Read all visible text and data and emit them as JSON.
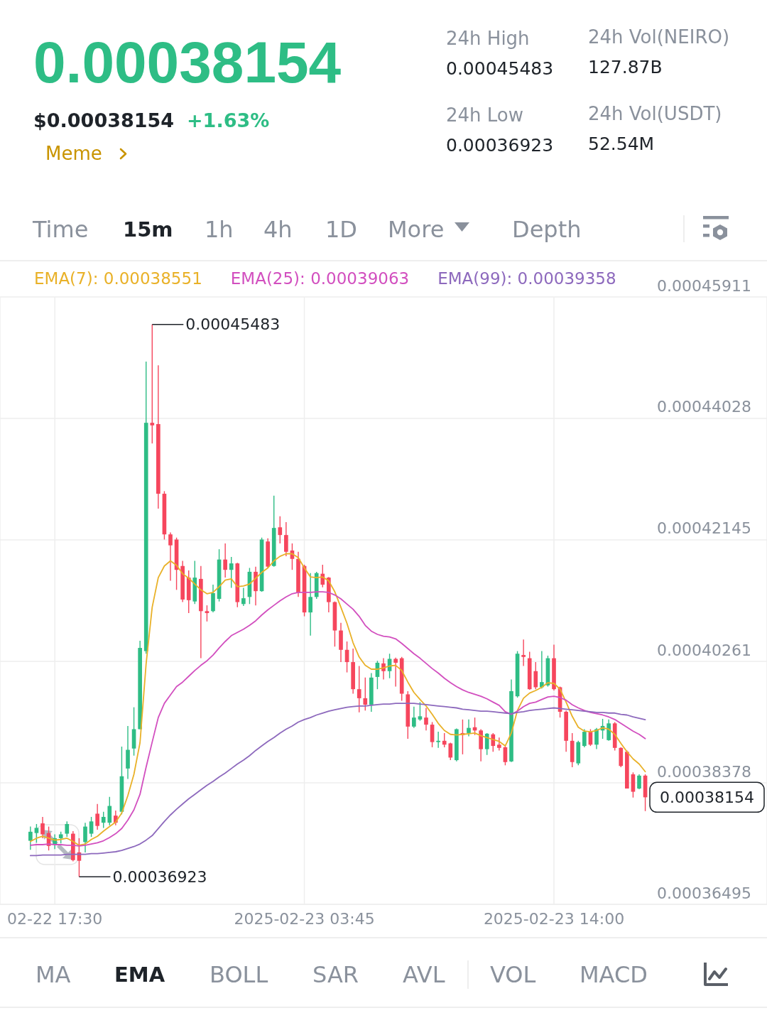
{
  "chart_data": {
    "type": "candlestick",
    "title": "0.00038154",
    "subtitle": "$0.00038154",
    "annotations": [
      "+1.63%",
      "Meme",
      "24h High",
      "0.00045483",
      "24h Low",
      "0.00036923",
      "24h Vol(NEIRO)",
      "127.87B",
      "24h Vol(USDT)",
      "52.54M",
      "Time",
      "15m",
      "1h",
      "4h",
      "1D",
      "More",
      "Depth",
      "MA",
      "EMA",
      "BOLL",
      "SAR",
      "AVL",
      "VOL",
      "MACD",
      {
        "text": "0.00045483",
        "x": "2025-02-22T21:30",
        "y": 0.00045483
      },
      {
        "text": "0.00036923",
        "x": "2025-02-22T18:30",
        "y": 0.00036923
      },
      "0.00038154"
    ],
    "x": [
      "2025-02-22T16:30",
      "2025-02-22T16:45",
      "2025-02-22T17:00",
      "2025-02-22T17:15",
      "2025-02-22T17:30",
      "2025-02-22T17:45",
      "2025-02-22T18:00",
      "2025-02-22T18:15",
      "2025-02-22T18:30",
      "2025-02-22T18:45",
      "2025-02-22T19:00",
      "2025-02-22T19:15",
      "2025-02-22T19:30",
      "2025-02-22T19:45",
      "2025-02-22T20:00",
      "2025-02-22T20:15",
      "2025-02-22T20:30",
      "2025-02-22T20:45",
      "2025-02-22T21:00",
      "2025-02-22T21:15",
      "2025-02-22T21:30",
      "2025-02-22T21:45",
      "2025-02-22T22:00",
      "2025-02-22T22:15",
      "2025-02-22T22:30",
      "2025-02-22T22:45",
      "2025-02-22T23:00",
      "2025-02-22T23:15",
      "2025-02-22T23:30",
      "2025-02-22T23:45",
      "2025-02-23T00:00",
      "2025-02-23T00:15",
      "2025-02-23T00:30",
      "2025-02-23T00:45",
      "2025-02-23T01:00",
      "2025-02-23T01:15",
      "2025-02-23T01:30",
      "2025-02-23T01:45",
      "2025-02-23T02:00",
      "2025-02-23T02:15",
      "2025-02-23T02:30",
      "2025-02-23T02:45",
      "2025-02-23T03:00",
      "2025-02-23T03:15",
      "2025-02-23T03:30",
      "2025-02-23T03:45",
      "2025-02-23T04:00",
      "2025-02-23T04:15",
      "2025-02-23T04:30",
      "2025-02-23T04:45",
      "2025-02-23T05:00",
      "2025-02-23T05:15",
      "2025-02-23T05:30",
      "2025-02-23T05:45",
      "2025-02-23T06:00",
      "2025-02-23T06:15",
      "2025-02-23T06:30",
      "2025-02-23T06:45",
      "2025-02-23T07:00",
      "2025-02-23T07:15",
      "2025-02-23T07:30",
      "2025-02-23T07:45",
      "2025-02-23T08:00",
      "2025-02-23T08:15",
      "2025-02-23T08:30",
      "2025-02-23T08:45",
      "2025-02-23T09:00",
      "2025-02-23T09:15",
      "2025-02-23T09:30",
      "2025-02-23T09:45",
      "2025-02-23T10:00",
      "2025-02-23T10:15",
      "2025-02-23T10:30",
      "2025-02-23T10:45",
      "2025-02-23T11:00",
      "2025-02-23T11:15",
      "2025-02-23T11:30",
      "2025-02-23T11:45",
      "2025-02-23T12:00",
      "2025-02-23T12:15",
      "2025-02-23T12:30",
      "2025-02-23T12:45",
      "2025-02-23T13:00",
      "2025-02-23T13:15",
      "2025-02-23T13:30",
      "2025-02-23T13:45",
      "2025-02-23T14:00",
      "2025-02-23T14:15",
      "2025-02-23T14:30",
      "2025-02-23T14:45",
      "2025-02-23T15:00",
      "2025-02-23T15:15",
      "2025-02-23T15:30",
      "2025-02-23T15:45",
      "2025-02-23T16:00",
      "2025-02-23T16:15",
      "2025-02-23T16:30",
      "2025-02-23T16:45",
      "2025-02-23T17:00",
      "2025-02-23T17:15",
      "2025-02-23T17:30",
      "2025-02-23T17:45"
    ],
    "ohlc": [
      [
        0.0003748,
        0.000377,
        0.0003734,
        0.0003762
      ],
      [
        0.000376,
        0.0003774,
        0.0003745,
        0.0003768
      ],
      [
        0.0003775,
        0.0003785,
        0.0003752,
        0.0003758
      ],
      [
        0.000376,
        0.000377,
        0.0003733,
        0.000374
      ],
      [
        0.0003742,
        0.0003758,
        0.0003735,
        0.0003752
      ],
      [
        0.0003752,
        0.0003762,
        0.0003744,
        0.0003758
      ],
      [
        0.0003759,
        0.0003778,
        0.0003754,
        0.0003774
      ],
      [
        0.0003759,
        0.0003763,
        0.0003716,
        0.0003718
      ],
      [
        0.000373,
        0.0003752,
        0.00036923,
        0.0003717
      ],
      [
        0.0003746,
        0.0003776,
        0.000373,
        0.000377
      ],
      [
        0.0003759,
        0.0003785,
        0.0003754,
        0.0003778
      ],
      [
        0.000379,
        0.0003805,
        0.0003765,
        0.0003771
      ],
      [
        0.0003776,
        0.0003793,
        0.0003768,
        0.0003785
      ],
      [
        0.0003776,
        0.0003816,
        0.0003772,
        0.0003802
      ],
      [
        0.0003787,
        0.0003795,
        0.0003772,
        0.0003776
      ],
      [
        0.0003793,
        0.0003894,
        0.0003789,
        0.0003848
      ],
      [
        0.000386,
        0.0003926,
        0.0003844,
        0.0003889
      ],
      [
        0.0003891,
        0.0003955,
        0.000388,
        0.0003921
      ],
      [
        0.0003921,
        0.0004058,
        0.0003921,
        0.0004047
      ],
      [
        0.0004042,
        0.0004491,
        0.0004038,
        0.0004396
      ],
      [
        0.0004396,
        0.00045483,
        0.0004364,
        0.0004392
      ],
      [
        0.0004394,
        0.0004485,
        0.0004263,
        0.0004286
      ],
      [
        0.0004286,
        0.000429,
        0.0004215,
        0.0004223
      ],
      [
        0.0004223,
        0.0004226,
        0.0004151,
        0.0004206
      ],
      [
        0.0004215,
        0.0004218,
        0.0004137,
        0.0004168
      ],
      [
        0.0004174,
        0.0004182,
        0.0004118,
        0.0004122
      ],
      [
        0.0004156,
        0.0004167,
        0.0004101,
        0.0004121
      ],
      [
        0.0004119,
        0.0004182,
        0.0004115,
        0.0004156
      ],
      [
        0.0004154,
        0.0004174,
        0.0004031,
        0.0004104
      ],
      [
        0.0004104,
        0.0004113,
        0.0004088,
        0.0004101
      ],
      [
        0.0004104,
        0.0004145,
        0.0004102,
        0.0004132
      ],
      [
        0.0004123,
        0.00042,
        0.0004119,
        0.0004184
      ],
      [
        0.0004184,
        0.0004209,
        0.0004156,
        0.0004168
      ],
      [
        0.0004168,
        0.0004188,
        0.000414,
        0.0004178
      ],
      [
        0.0004178,
        0.0004179,
        0.000411,
        0.0004118
      ],
      [
        0.0004115,
        0.000414,
        0.0004112,
        0.0004124
      ],
      [
        0.0004126,
        0.0004171,
        0.0004115,
        0.0004165
      ],
      [
        0.0004165,
        0.0004173,
        0.0004113,
        0.0004135
      ],
      [
        0.0004135,
        0.0004218,
        0.0004134,
        0.0004215
      ],
      [
        0.0004212,
        0.0004217,
        0.0004171,
        0.0004173
      ],
      [
        0.0004174,
        0.0004283,
        0.0004173,
        0.0004233
      ],
      [
        0.0004234,
        0.0004251,
        0.0004209,
        0.0004222
      ],
      [
        0.0004222,
        0.0004242,
        0.0004189,
        0.0004196
      ],
      [
        0.0004198,
        0.0004209,
        0.0004168,
        0.0004185
      ],
      [
        0.0004185,
        0.0004196,
        0.0004126,
        0.0004132
      ],
      [
        0.0004174,
        0.0004176,
        0.0004096,
        0.0004102
      ],
      [
        0.0004102,
        0.0004163,
        0.0004066,
        0.0004126
      ],
      [
        0.0004126,
        0.0004165,
        0.0004123,
        0.0004163
      ],
      [
        0.0004162,
        0.0004176,
        0.0004141,
        0.0004145
      ],
      [
        0.0004156,
        0.0004157,
        0.0004102,
        0.0004118
      ],
      [
        0.0004118,
        0.0004119,
        0.0004049,
        0.0004074
      ],
      [
        0.0004074,
        0.0004086,
        0.0004025,
        0.0004044
      ],
      [
        0.0004044,
        0.0004057,
        0.0004009,
        0.0004025
      ],
      [
        0.0004025,
        0.0004046,
        0.0003976,
        0.0003983
      ],
      [
        0.0003983,
        0.0004019,
        0.0003947,
        0.0003969
      ],
      [
        0.0003969,
        0.0004001,
        0.000395,
        0.0003959
      ],
      [
        0.0003959,
        0.0004008,
        0.0003948,
        0.0004001
      ],
      [
        0.0004002,
        0.0004027,
        0.0003983,
        0.0004024
      ],
      [
        0.0004023,
        0.0004031,
        0.0003998,
        0.0004011
      ],
      [
        0.0004011,
        0.0004038,
        0.0004,
        0.000403
      ],
      [
        0.000403,
        0.0004032,
        0.0003987,
        0.0004024
      ],
      [
        0.0004031,
        0.0004033,
        0.0003965,
        0.0003976
      ],
      [
        0.0003975,
        0.000398,
        0.0003906,
        0.0003925
      ],
      [
        0.0003925,
        0.0003956,
        0.0003923,
        0.0003939
      ],
      [
        0.0003936,
        0.0003963,
        0.0003934,
        0.0003941
      ],
      [
        0.0003939,
        0.0003954,
        0.0003919,
        0.0003928
      ],
      [
        0.0003928,
        0.0003932,
        0.0003893,
        0.0003901
      ],
      [
        0.0003901,
        0.0003917,
        0.0003892,
        0.0003903
      ],
      [
        0.0003903,
        0.0003915,
        0.0003893,
        0.0003897
      ],
      [
        0.0003899,
        0.00039,
        0.0003873,
        0.0003877
      ],
      [
        0.0003873,
        0.0003922,
        0.0003871,
        0.0003921
      ],
      [
        0.0003915,
        0.0003936,
        0.0003882,
        0.0003912
      ],
      [
        0.0003915,
        0.0003936,
        0.000391,
        0.0003923
      ],
      [
        0.0003924,
        0.0003939,
        0.0003912,
        0.0003919
      ],
      [
        0.0003919,
        0.0003921,
        0.0003871,
        0.000389
      ],
      [
        0.000389,
        0.0003915,
        0.0003881,
        0.0003914
      ],
      [
        0.0003913,
        0.0003915,
        0.0003886,
        0.0003895
      ],
      [
        0.0003897,
        0.0003908,
        0.0003888,
        0.0003892
      ],
      [
        0.0003893,
        0.0003895,
        0.0003865,
        0.000387
      ],
      [
        0.0003871,
        0.0003998,
        0.000387,
        0.000398
      ],
      [
        0.0003972,
        0.0004042,
        0.000397,
        0.0004038
      ],
      [
        0.0004036,
        0.000406,
        0.0004019,
        0.0004033
      ],
      [
        0.0004031,
        0.0004041,
        0.0003982,
        0.0003983
      ],
      [
        0.0004011,
        0.0004025,
        0.0003983,
        0.0003986
      ],
      [
        0.0003986,
        0.0004042,
        0.0003984,
        0.0003994
      ],
      [
        0.0003989,
        0.0004035,
        0.0003987,
        0.0004031
      ],
      [
        0.0004031,
        0.0004052,
        0.0003981,
        0.0003983
      ],
      [
        0.0003986,
        0.0003987,
        0.0003939,
        0.0003948
      ],
      [
        0.0003948,
        0.000395,
        0.0003886,
        0.0003903
      ],
      [
        0.0003903,
        0.0003915,
        0.0003862,
        0.000387
      ],
      [
        0.0003868,
        0.0003903,
        0.0003865,
        0.0003901
      ],
      [
        0.0003895,
        0.0003921,
        0.0003893,
        0.0003917
      ],
      [
        0.0003917,
        0.0003921,
        0.0003895,
        0.0003897
      ],
      [
        0.0003897,
        0.0003923,
        0.000389,
        0.0003921
      ],
      [
        0.0003919,
        0.0003937,
        0.0003906,
        0.0003926
      ],
      [
        0.0003904,
        0.0003936,
        0.0003903,
        0.000393
      ],
      [
        0.000393,
        0.0003932,
        0.0003888,
        0.0003892
      ],
      [
        0.0003892,
        0.0003893,
        0.0003862,
        0.0003864
      ],
      [
        0.0003886,
        0.0003888,
        0.0003829,
        0.0003829
      ],
      [
        0.0003851,
        0.0003854,
        0.0003815,
        0.0003824
      ],
      [
        0.0003829,
        0.0003851,
        0.0003828,
        0.0003849
      ],
      [
        0.0003849,
        0.0003851,
        0.0003794,
        0.00038154
      ]
    ],
    "colors": [
      "#2ebd85",
      "#2ebd85",
      "#f6465d",
      "#f6465d",
      "#2ebd85",
      "#2ebd85",
      "#2ebd85",
      "#f6465d",
      "#f6465d",
      "#2ebd85",
      "#2ebd85",
      "#f6465d",
      "#2ebd85",
      "#2ebd85",
      "#f6465d",
      "#2ebd85",
      "#2ebd85",
      "#2ebd85",
      "#2ebd85",
      "#2ebd85",
      "#f6465d",
      "#f6465d",
      "#f6465d",
      "#f6465d",
      "#f6465d",
      "#f6465d",
      "#f6465d",
      "#2ebd85",
      "#f6465d",
      "#f6465d",
      "#2ebd85",
      "#2ebd85",
      "#f6465d",
      "#2ebd85",
      "#f6465d",
      "#2ebd85",
      "#2ebd85",
      "#f6465d",
      "#2ebd85",
      "#f6465d",
      "#2ebd85",
      "#f6465d",
      "#f6465d",
      "#f6465d",
      "#f6465d",
      "#f6465d",
      "#2ebd85",
      "#2ebd85",
      "#f6465d",
      "#f6465d",
      "#f6465d",
      "#f6465d",
      "#f6465d",
      "#f6465d",
      "#f6465d",
      "#f6465d",
      "#2ebd85",
      "#2ebd85",
      "#f6465d",
      "#2ebd85",
      "#f6465d",
      "#f6465d",
      "#f6465d",
      "#2ebd85",
      "#2ebd85",
      "#f6465d",
      "#f6465d",
      "#2ebd85",
      "#f6465d",
      "#f6465d",
      "#2ebd85",
      "#f6465d",
      "#2ebd85",
      "#f6465d",
      "#f6465d",
      "#2ebd85",
      "#f6465d",
      "#f6465d",
      "#f6465d",
      "#2ebd85",
      "#2ebd85",
      "#f6465d",
      "#f6465d",
      "#f6465d",
      "#2ebd85",
      "#2ebd85",
      "#f6465d",
      "#f6465d",
      "#f6465d",
      "#f6465d",
      "#2ebd85",
      "#2ebd85",
      "#f6465d",
      "#2ebd85",
      "#2ebd85",
      "#2ebd85",
      "#f6465d",
      "#f6465d",
      "#f6465d",
      "#f6465d",
      "#2ebd85",
      "#f6465d"
    ],
    "series": [
      {
        "type": "line",
        "name": "EMA(7): 0.00038551",
        "color": "#e9b128",
        "values": [
          0.0003747,
          0.0003752,
          0.0003755,
          0.0003752,
          0.0003749,
          0.000375,
          0.0003752,
          0.0003747,
          0.0003741,
          0.0003743,
          0.000375,
          0.0003755,
          0.0003763,
          0.000377,
          0.0003777,
          0.0003791,
          0.0003818,
          0.0003851,
          0.00039,
          0.0004022,
          0.000411,
          0.0004156,
          0.0004174,
          0.0004182,
          0.0004175,
          0.0004162,
          0.0004155,
          0.0004146,
          0.0004137,
          0.0004131,
          0.0004133,
          0.0004142,
          0.0004152,
          0.0004154,
          0.0004142,
          0.0004143,
          0.0004146,
          0.0004155,
          0.0004164,
          0.0004171,
          0.0004182,
          0.0004189,
          0.0004193,
          0.0004193,
          0.0004187,
          0.0004171,
          0.0004157,
          0.0004156,
          0.0004157,
          0.0004151,
          0.0004134,
          0.000411,
          0.0004085,
          0.0004055,
          0.0004033,
          0.000402,
          0.0004014,
          0.0004014,
          0.0004016,
          0.0004019,
          0.000402,
          0.0004012,
          0.0003994,
          0.0003978,
          0.0003967,
          0.0003957,
          0.0003944,
          0.000393,
          0.0003919,
          0.0003913,
          0.0003912,
          0.0003913,
          0.0003914,
          0.0003915,
          0.0003911,
          0.0003908,
          0.0003905,
          0.0003902,
          0.0003895,
          0.0003915,
          0.000395,
          0.0003969,
          0.0003977,
          0.0003981,
          0.0003986,
          0.0003993,
          0.0003992,
          0.0003983,
          0.0003963,
          0.0003941,
          0.0003924,
          0.0003918,
          0.0003917,
          0.0003919,
          0.0003923,
          0.0003921,
          0.0003913,
          0.0003899,
          0.0003886,
          0.0003875,
          0.0003867,
          0.00038551
        ]
      },
      {
        "type": "line",
        "name": "EMA(25): 0.00039063",
        "color": "#d24fbf",
        "values": [
          0.0003741,
          0.0003742,
          0.0003742,
          0.0003743,
          0.0003742,
          0.0003742,
          0.0003741,
          0.0003741,
          0.000374,
          0.0003741,
          0.0003743,
          0.0003745,
          0.0003748,
          0.0003753,
          0.0003759,
          0.0003767,
          0.000378,
          0.0003796,
          0.000382,
          0.0003862,
          0.0003901,
          0.0003939,
          0.0003961,
          0.0003974,
          0.0003987,
          0.0003994,
          0.0004003,
          0.0004012,
          0.000402,
          0.0004027,
          0.0004036,
          0.0004047,
          0.0004057,
          0.0004066,
          0.0004071,
          0.0004076,
          0.0004082,
          0.0004089,
          0.0004098,
          0.0004106,
          0.0004113,
          0.000412,
          0.0004126,
          0.0004131,
          0.0004133,
          0.0004133,
          0.0004133,
          0.0004134,
          0.0004134,
          0.0004133,
          0.0004129,
          0.0004123,
          0.0004115,
          0.0004107,
          0.0004096,
          0.0004082,
          0.0004073,
          0.0004068,
          0.0004065,
          0.0004064,
          0.0004061,
          0.0004054,
          0.0004046,
          0.0004038,
          0.0004031,
          0.0004023,
          0.0004015,
          0.0004008,
          0.0004,
          0.0003993,
          0.0003987,
          0.0003982,
          0.0003978,
          0.0003975,
          0.0003972,
          0.0003968,
          0.0003963,
          0.0003958,
          0.0003948,
          0.0003944,
          0.0003949,
          0.0003956,
          0.0003961,
          0.0003963,
          0.0003967,
          0.0003971,
          0.0003972,
          0.000397,
          0.0003966,
          0.0003959,
          0.0003954,
          0.000395,
          0.0003947,
          0.0003945,
          0.0003943,
          0.000394,
          0.0003936,
          0.000393,
          0.0003924,
          0.0003918,
          0.0003913,
          0.00039063
        ]
      },
      {
        "type": "line",
        "name": "EMA(99): 0.00039358",
        "color": "#8d69bd",
        "values": [
          0.0003725,
          0.0003725,
          0.0003726,
          0.0003726,
          0.0003726,
          0.0003726,
          0.0003727,
          0.0003727,
          0.0003727,
          0.0003727,
          0.0003728,
          0.0003728,
          0.0003729,
          0.000373,
          0.0003731,
          0.0003733,
          0.0003736,
          0.0003739,
          0.0003743,
          0.0003749,
          0.0003756,
          0.0003767,
          0.0003778,
          0.0003788,
          0.0003797,
          0.0003805,
          0.0003813,
          0.000382,
          0.0003827,
          0.0003834,
          0.000384,
          0.0003847,
          0.0003853,
          0.000386,
          0.0003867,
          0.0003873,
          0.000388,
          0.0003888,
          0.0003895,
          0.0003902,
          0.0003908,
          0.0003915,
          0.0003921,
          0.0003926,
          0.0003932,
          0.0003936,
          0.0003939,
          0.0003943,
          0.0003946,
          0.0003949,
          0.0003951,
          0.0003953,
          0.0003955,
          0.0003956,
          0.0003957,
          0.0003957,
          0.0003958,
          0.0003959,
          0.000396,
          0.000396,
          0.0003961,
          0.0003961,
          0.0003961,
          0.0003961,
          0.000396,
          0.0003959,
          0.0003958,
          0.0003957,
          0.0003956,
          0.0003955,
          0.0003954,
          0.0003952,
          0.0003951,
          0.000395,
          0.0003949,
          0.0003949,
          0.0003948,
          0.0003947,
          0.0003946,
          0.0003945,
          0.0003947,
          0.0003948,
          0.000395,
          0.0003951,
          0.0003952,
          0.0003953,
          0.0003954,
          0.0003953,
          0.0003952,
          0.0003951,
          0.000395,
          0.0003949,
          0.0003948,
          0.0003947,
          0.0003947,
          0.0003946,
          0.0003946,
          0.0003944,
          0.0003943,
          0.000394,
          0.0003938,
          0.00039358
        ]
      }
    ],
    "xlim": [
      "2025-02-22T15:15",
      "2025-02-23T22:45"
    ],
    "xticks": [
      {
        "value": "2025-02-22T17:30",
        "label": "02-22 17:30"
      },
      {
        "value": "2025-02-23T03:45",
        "label": "2025-02-23 03:45"
      },
      {
        "value": "2025-02-23T14:00",
        "label": "2025-02-23 14:00"
      }
    ],
    "ylim": [
      0.00036495,
      0.00045911
    ],
    "yticks": [
      0.00036495,
      0.00038378,
      0.00040261,
      0.00042145,
      0.00044028,
      0.00045911
    ],
    "grid": true,
    "legend": "top left"
  }
}
